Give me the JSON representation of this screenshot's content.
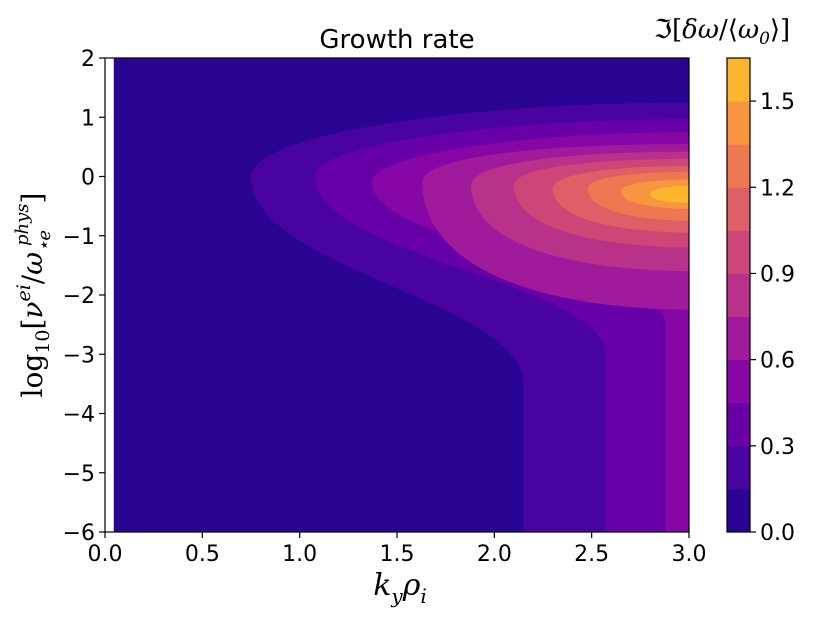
{
  "chart_data": {
    "type": "heatmap",
    "subtype": "filled-contour",
    "title": "Growth rate",
    "xlabel": "k_y ρ_i",
    "ylabel": "log10[ν^ei/ω⋆e^phys]",
    "colorbar_label": "ℑ[δω/⟨ω0⟩]",
    "xlim": [
      0.0,
      3.0
    ],
    "ylim": [
      -6,
      2
    ],
    "x_ticks": [
      "0.0",
      "0.5",
      "1.0",
      "1.5",
      "2.0",
      "2.5",
      "3.0"
    ],
    "y_ticks": [
      "2",
      "1",
      "0",
      "−1",
      "−2",
      "−3",
      "−4",
      "−5",
      "−6"
    ],
    "colorbar_ticks": [
      "0.0",
      "0.3",
      "0.6",
      "0.9",
      "1.2",
      "1.5"
    ],
    "colormap": "plasma",
    "levels": [
      0.0,
      0.15,
      0.3,
      0.45,
      0.6,
      0.75,
      0.9,
      1.05,
      1.2,
      1.35,
      1.5,
      1.65
    ],
    "level_colors": [
      "#2a0593",
      "#4903a0",
      "#6800a8",
      "#8606a6",
      "#a01a9c",
      "#b93289",
      "#cc4778",
      "#de5f65",
      "#ed7953",
      "#f89540",
      "#fdb42f",
      "#f5e626"
    ],
    "contour_boundaries": [
      {
        "level": 0.15,
        "left_tail_x": 2.15,
        "nose_x": 0.75,
        "nose_y": 0.0,
        "top_y": 1.25,
        "tail_y": -3.5
      },
      {
        "level": 0.3,
        "left_tail_x": 2.57,
        "nose_x": 1.08,
        "nose_y": 0.0,
        "top_y": 0.97,
        "tail_y": -3.0
      },
      {
        "level": 0.45,
        "left_tail_x": 2.88,
        "nose_x": 1.37,
        "nose_y": -0.1,
        "top_y": 0.75,
        "tail_y": -2.5
      },
      {
        "level": 0.6,
        "nose_x": 1.63,
        "nose_y": -0.1,
        "top_y": 0.55,
        "bottom_y": -2.25
      },
      {
        "level": 0.75,
        "nose_x": 1.88,
        "nose_y": -0.15,
        "top_y": 0.42,
        "bottom_y": -1.6
      },
      {
        "level": 0.9,
        "nose_x": 2.1,
        "nose_y": -0.15,
        "top_y": 0.3,
        "bottom_y": -1.2
      },
      {
        "level": 1.05,
        "nose_x": 2.3,
        "nose_y": -0.2,
        "top_y": 0.18,
        "bottom_y": -0.95
      },
      {
        "level": 1.2,
        "nose_x": 2.48,
        "nose_y": -0.2,
        "top_y": 0.08,
        "bottom_y": -0.75
      },
      {
        "level": 1.35,
        "nose_x": 2.65,
        "nose_y": -0.25,
        "top_y": -0.05,
        "bottom_y": -0.55
      },
      {
        "level": 1.5,
        "nose_x": 2.8,
        "nose_y": -0.3,
        "top_y": -0.15,
        "bottom_y": -0.45
      }
    ],
    "background_strip_x": [
      0.0,
      0.045
    ],
    "grid": false
  }
}
